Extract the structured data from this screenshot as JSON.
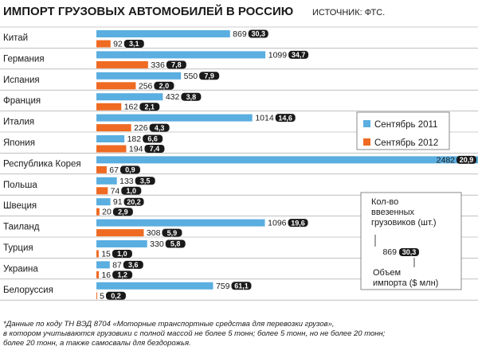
{
  "chart_data": {
    "type": "bar",
    "orientation": "horizontal",
    "title": "ИМПОРТ ГРУЗОВЫХ АВТОМОБИЛЕЙ В РОССИЮ",
    "source": "ИСТОЧНИК: ФТС.",
    "categories": [
      "Китай",
      "Германия",
      "Испания",
      "Франция",
      "Италия",
      "Япония",
      "Республика Корея",
      "Польша",
      "Швеция",
      "Таиланд",
      "Турция",
      "Украина",
      "Белоруссия"
    ],
    "series": [
      {
        "name": "Сентябрь 2011",
        "color": "#5aaee0",
        "values": [
          869,
          1099,
          550,
          432,
          1014,
          182,
          2482,
          133,
          91,
          1096,
          330,
          87,
          759
        ],
        "values_usd_mln": [
          "30,3",
          "34,7",
          "7,9",
          "3,8",
          "14,6",
          "6,6",
          "20,9",
          "3,5",
          "20,2",
          "19,6",
          "5,8",
          "3,6",
          "61,1"
        ]
      },
      {
        "name": "Сентябрь 2012",
        "color": "#ef6a22",
        "values": [
          92,
          336,
          256,
          162,
          226,
          194,
          67,
          74,
          20,
          308,
          15,
          16,
          5
        ],
        "values_usd_mln": [
          "3,1",
          "7,8",
          "2,0",
          "2,1",
          "4,3",
          "7,4",
          "0,9",
          "1,0",
          "2,9",
          "5,9",
          "1,0",
          "1,2",
          "0,2"
        ]
      }
    ],
    "legend_position": "right"
  },
  "key_box": {
    "quantity_label": [
      "Кол-во",
      "ввезенных",
      "грузовиков (шт.)"
    ],
    "example_value": "869",
    "example_badge": "30,3",
    "amount_label": [
      "Объем",
      "импорта ($ млн)"
    ]
  },
  "footnote": [
    "*Данные по коду ТН ВЭД 8704 «Моторные транспортные средства для перевозки грузов»,",
    "в котором учитываются грузовики с полной массой не более 5 тонн; более 5 тонн, но не более 20 тонн;",
    "более 20 тонн, а также самосвалы для бездорожья."
  ],
  "colors": {
    "badge": "#1a1a1a",
    "divider": "#9a9a9a"
  }
}
